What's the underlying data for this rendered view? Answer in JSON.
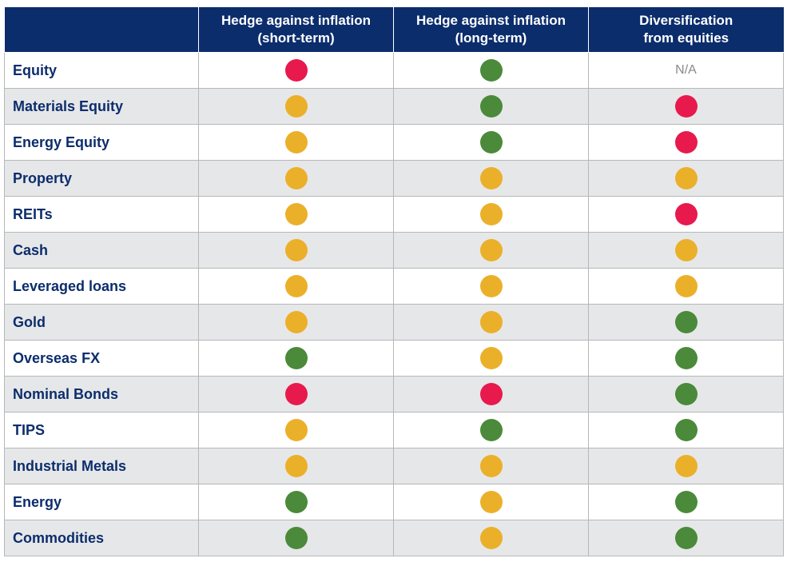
{
  "colors": {
    "header_bg": "#0c2d6c",
    "label_text": "#0c2d6c",
    "red": "#e8194d",
    "amber": "#ebb02a",
    "green": "#4a8a3a",
    "alt_row": "#e6e7e9"
  },
  "table": {
    "headers": [
      "",
      "Hedge against inflation\n(short-term)",
      "Hedge against inflation\n(long-term)",
      "Diversification\nfrom equities"
    ],
    "rows": [
      {
        "label": "Equity",
        "ratings": [
          "red",
          "green",
          "N/A"
        ]
      },
      {
        "label": "Materials Equity",
        "ratings": [
          "amber",
          "green",
          "red"
        ]
      },
      {
        "label": "Energy Equity",
        "ratings": [
          "amber",
          "green",
          "red"
        ]
      },
      {
        "label": "Property",
        "ratings": [
          "amber",
          "amber",
          "amber"
        ]
      },
      {
        "label": "REITs",
        "ratings": [
          "amber",
          "amber",
          "red"
        ]
      },
      {
        "label": "Cash",
        "ratings": [
          "amber",
          "amber",
          "amber"
        ]
      },
      {
        "label": "Leveraged loans",
        "ratings": [
          "amber",
          "amber",
          "amber"
        ]
      },
      {
        "label": "Gold",
        "ratings": [
          "amber",
          "amber",
          "green"
        ]
      },
      {
        "label": "Overseas FX",
        "ratings": [
          "green",
          "amber",
          "green"
        ]
      },
      {
        "label": "Nominal Bonds",
        "ratings": [
          "red",
          "red",
          "green"
        ]
      },
      {
        "label": "TIPS",
        "ratings": [
          "amber",
          "green",
          "green"
        ]
      },
      {
        "label": "Industrial Metals",
        "ratings": [
          "amber",
          "amber",
          "amber"
        ]
      },
      {
        "label": "Energy",
        "ratings": [
          "green",
          "amber",
          "green"
        ]
      },
      {
        "label": "Commodities",
        "ratings": [
          "green",
          "amber",
          "green"
        ]
      }
    ]
  }
}
